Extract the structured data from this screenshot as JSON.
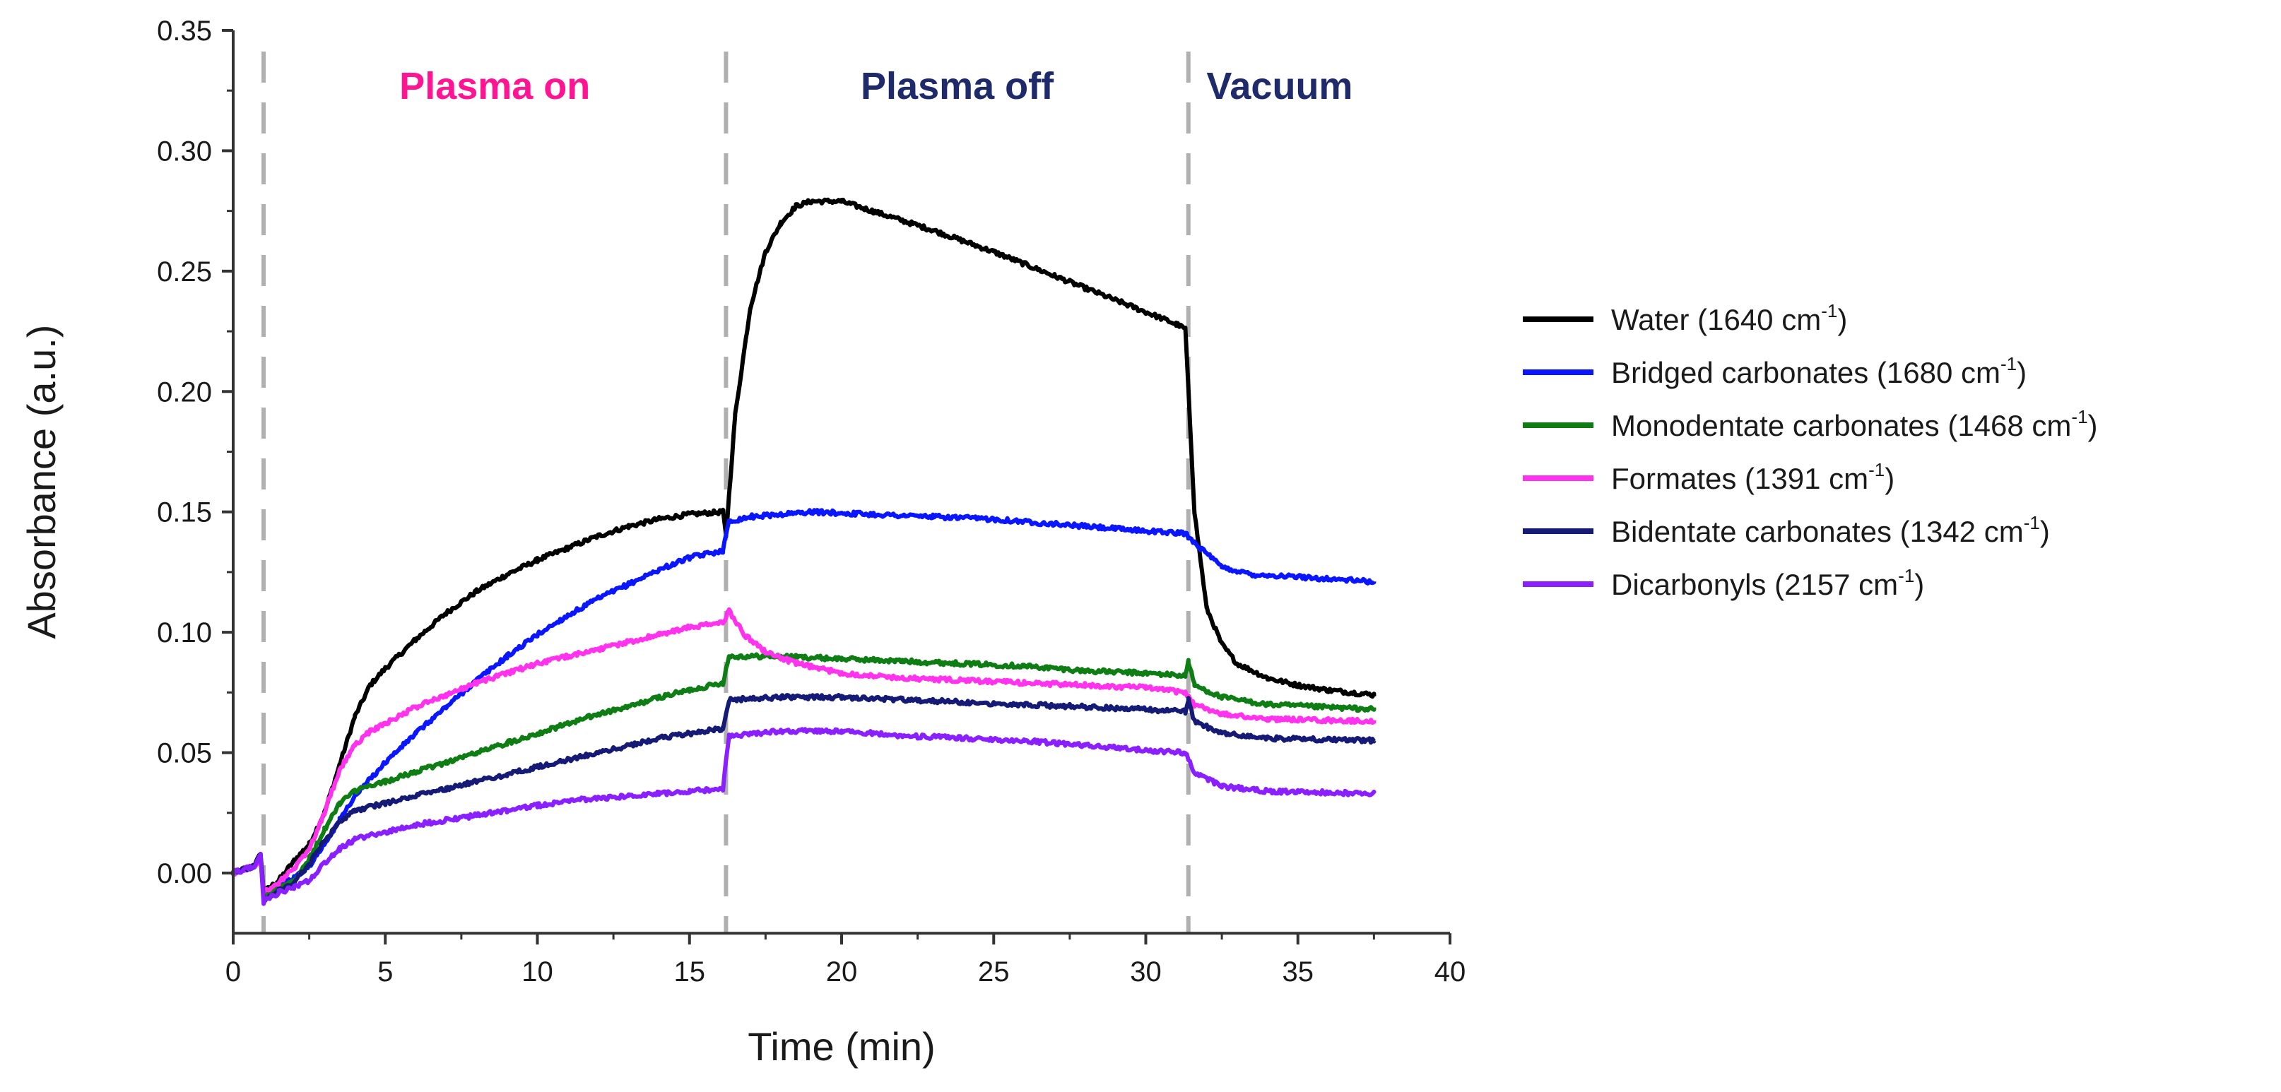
{
  "chart_data": {
    "type": "line",
    "xlabel": "Time (min)",
    "ylabel": "Absorbance (a.u.)",
    "xlim": [
      0,
      40
    ],
    "ylim": [
      -0.025,
      0.35
    ],
    "xticks": [
      "0",
      "5",
      "10",
      "15",
      "20",
      "25",
      "30",
      "35",
      "40"
    ],
    "xtick_values": [
      0,
      5,
      10,
      15,
      20,
      25,
      30,
      35,
      40
    ],
    "yticks": [
      "0.00",
      "0.05",
      "0.10",
      "0.15",
      "0.20",
      "0.25",
      "0.30",
      "0.35"
    ],
    "ytick_values": [
      0,
      0.05,
      0.1,
      0.15,
      0.2,
      0.25,
      0.3,
      0.35
    ],
    "phase_boundaries": [
      1.0,
      16.2,
      31.4
    ],
    "phases": [
      {
        "label": "Plasma on",
        "x_center": 8.6,
        "color": "#ff1493"
      },
      {
        "label": "Plasma off",
        "x_center": 23.8,
        "color": "#1f2a6b"
      },
      {
        "label": "Vacuum",
        "x_center": 34.4,
        "color": "#1f2a6b"
      }
    ],
    "legend_position": "right",
    "series": [
      {
        "name": "Water (1640 cm",
        "sup": "-1",
        "close": ")",
        "color": "#000000",
        "points": [
          [
            0,
            0
          ],
          [
            0.7,
            0.003
          ],
          [
            0.9,
            0.008
          ],
          [
            1.0,
            -0.008
          ],
          [
            1.5,
            -0.003
          ],
          [
            2.0,
            0.005
          ],
          [
            2.5,
            0.012
          ],
          [
            3.0,
            0.025
          ],
          [
            3.5,
            0.045
          ],
          [
            4.0,
            0.065
          ],
          [
            4.5,
            0.078
          ],
          [
            5.0,
            0.085
          ],
          [
            6.0,
            0.097
          ],
          [
            7.0,
            0.108
          ],
          [
            8.0,
            0.117
          ],
          [
            9.0,
            0.124
          ],
          [
            10.0,
            0.13
          ],
          [
            11.0,
            0.135
          ],
          [
            12.0,
            0.14
          ],
          [
            13.0,
            0.144
          ],
          [
            14.0,
            0.147
          ],
          [
            15.0,
            0.149
          ],
          [
            16.1,
            0.15
          ],
          [
            16.2,
            0.14
          ],
          [
            16.5,
            0.19
          ],
          [
            17.0,
            0.235
          ],
          [
            17.5,
            0.258
          ],
          [
            18.0,
            0.27
          ],
          [
            18.5,
            0.277
          ],
          [
            19.0,
            0.279
          ],
          [
            20.0,
            0.279
          ],
          [
            21.0,
            0.275
          ],
          [
            23.0,
            0.267
          ],
          [
            25.0,
            0.258
          ],
          [
            27.0,
            0.248
          ],
          [
            29.0,
            0.238
          ],
          [
            31.0,
            0.228
          ],
          [
            31.3,
            0.226
          ],
          [
            31.6,
            0.15
          ],
          [
            32.0,
            0.11
          ],
          [
            32.5,
            0.095
          ],
          [
            33.0,
            0.087
          ],
          [
            34.0,
            0.081
          ],
          [
            35.0,
            0.078
          ],
          [
            36.0,
            0.076
          ],
          [
            37.5,
            0.074
          ]
        ]
      },
      {
        "name": "Bridged carbonates (1680 cm",
        "sup": "-1",
        "close": ")",
        "color": "#0a16ff",
        "points": [
          [
            0,
            0
          ],
          [
            0.7,
            0.003
          ],
          [
            0.9,
            0.007
          ],
          [
            1.0,
            -0.009
          ],
          [
            1.5,
            -0.005
          ],
          [
            2.0,
            -0.002
          ],
          [
            2.5,
            0.003
          ],
          [
            3.0,
            0.012
          ],
          [
            3.5,
            0.022
          ],
          [
            4.0,
            0.032
          ],
          [
            5.0,
            0.046
          ],
          [
            6.0,
            0.058
          ],
          [
            7.0,
            0.069
          ],
          [
            8.0,
            0.08
          ],
          [
            9.0,
            0.09
          ],
          [
            10.0,
            0.099
          ],
          [
            11.0,
            0.107
          ],
          [
            12.0,
            0.114
          ],
          [
            13.0,
            0.12
          ],
          [
            14.0,
            0.126
          ],
          [
            15.0,
            0.131
          ],
          [
            16.1,
            0.134
          ],
          [
            16.3,
            0.146
          ],
          [
            17.0,
            0.148
          ],
          [
            19.0,
            0.15
          ],
          [
            21.0,
            0.149
          ],
          [
            23.0,
            0.148
          ],
          [
            25.0,
            0.147
          ],
          [
            27.0,
            0.145
          ],
          [
            29.0,
            0.143
          ],
          [
            31.3,
            0.141
          ],
          [
            31.8,
            0.135
          ],
          [
            32.5,
            0.127
          ],
          [
            33.5,
            0.124
          ],
          [
            35.0,
            0.123
          ],
          [
            37.5,
            0.121
          ]
        ]
      },
      {
        "name": "Monodentate carbonates (1468 cm",
        "sup": "-1",
        "close": ")",
        "color": "#0d7d14",
        "points": [
          [
            0,
            0
          ],
          [
            0.7,
            0.003
          ],
          [
            0.9,
            0.007
          ],
          [
            1.0,
            -0.01
          ],
          [
            1.5,
            -0.006
          ],
          [
            2.0,
            -0.003
          ],
          [
            2.5,
            0.006
          ],
          [
            3.0,
            0.018
          ],
          [
            3.5,
            0.029
          ],
          [
            4.0,
            0.034
          ],
          [
            5.0,
            0.038
          ],
          [
            6.0,
            0.042
          ],
          [
            7.0,
            0.046
          ],
          [
            8.0,
            0.05
          ],
          [
            9.0,
            0.054
          ],
          [
            10.0,
            0.058
          ],
          [
            11.0,
            0.062
          ],
          [
            12.0,
            0.066
          ],
          [
            13.0,
            0.069
          ],
          [
            14.0,
            0.073
          ],
          [
            15.0,
            0.076
          ],
          [
            16.1,
            0.079
          ],
          [
            16.3,
            0.09
          ],
          [
            18.0,
            0.09
          ],
          [
            20.0,
            0.089
          ],
          [
            22.0,
            0.088
          ],
          [
            24.0,
            0.087
          ],
          [
            26.0,
            0.086
          ],
          [
            28.0,
            0.084
          ],
          [
            30.0,
            0.083
          ],
          [
            31.3,
            0.082
          ],
          [
            31.4,
            0.088
          ],
          [
            31.6,
            0.078
          ],
          [
            32.5,
            0.073
          ],
          [
            34.0,
            0.07
          ],
          [
            37.5,
            0.068
          ]
        ]
      },
      {
        "name": "Formates (1391 cm",
        "sup": "-1",
        "close": ")",
        "color": "#ff33ee",
        "points": [
          [
            0,
            0
          ],
          [
            0.7,
            0.003
          ],
          [
            0.9,
            0.006
          ],
          [
            1.0,
            -0.008
          ],
          [
            1.5,
            -0.004
          ],
          [
            2.0,
            0.002
          ],
          [
            2.5,
            0.01
          ],
          [
            3.0,
            0.025
          ],
          [
            3.5,
            0.043
          ],
          [
            4.0,
            0.053
          ],
          [
            4.5,
            0.059
          ],
          [
            5.0,
            0.062
          ],
          [
            6.0,
            0.069
          ],
          [
            7.0,
            0.074
          ],
          [
            8.0,
            0.079
          ],
          [
            9.0,
            0.083
          ],
          [
            10.0,
            0.087
          ],
          [
            11.0,
            0.09
          ],
          [
            12.0,
            0.093
          ],
          [
            13.0,
            0.096
          ],
          [
            14.0,
            0.099
          ],
          [
            15.0,
            0.102
          ],
          [
            16.1,
            0.104
          ],
          [
            16.3,
            0.109
          ],
          [
            16.8,
            0.099
          ],
          [
            17.5,
            0.092
          ],
          [
            18.5,
            0.087
          ],
          [
            20.0,
            0.083
          ],
          [
            22.0,
            0.081
          ],
          [
            24.0,
            0.08
          ],
          [
            26.0,
            0.079
          ],
          [
            28.0,
            0.078
          ],
          [
            30.0,
            0.077
          ],
          [
            31.3,
            0.075
          ],
          [
            31.6,
            0.07
          ],
          [
            32.5,
            0.066
          ],
          [
            34.0,
            0.064
          ],
          [
            37.5,
            0.063
          ]
        ]
      },
      {
        "name": "Bidentate carbonates (1342 cm",
        "sup": "-1",
        "close": ")",
        "color": "#141a75",
        "points": [
          [
            0,
            0
          ],
          [
            0.7,
            0.003
          ],
          [
            0.9,
            0.007
          ],
          [
            1.0,
            -0.011
          ],
          [
            1.5,
            -0.007
          ],
          [
            2.0,
            -0.004
          ],
          [
            2.5,
            0.004
          ],
          [
            3.0,
            0.013
          ],
          [
            3.5,
            0.021
          ],
          [
            4.0,
            0.026
          ],
          [
            5.0,
            0.029
          ],
          [
            6.0,
            0.032
          ],
          [
            7.0,
            0.035
          ],
          [
            8.0,
            0.038
          ],
          [
            9.0,
            0.041
          ],
          [
            10.0,
            0.044
          ],
          [
            11.0,
            0.047
          ],
          [
            12.0,
            0.05
          ],
          [
            13.0,
            0.053
          ],
          [
            14.0,
            0.056
          ],
          [
            15.0,
            0.058
          ],
          [
            16.1,
            0.06
          ],
          [
            16.3,
            0.072
          ],
          [
            18.0,
            0.073
          ],
          [
            20.0,
            0.073
          ],
          [
            22.0,
            0.072
          ],
          [
            24.0,
            0.071
          ],
          [
            26.0,
            0.07
          ],
          [
            28.0,
            0.069
          ],
          [
            30.0,
            0.068
          ],
          [
            31.3,
            0.067
          ],
          [
            31.4,
            0.072
          ],
          [
            31.6,
            0.063
          ],
          [
            32.5,
            0.058
          ],
          [
            34.0,
            0.056
          ],
          [
            37.5,
            0.055
          ]
        ]
      },
      {
        "name": "Dicarbonyls (2157 cm",
        "sup": "-1",
        "close": ")",
        "color": "#8a1fff",
        "points": [
          [
            0,
            0
          ],
          [
            0.7,
            0.003
          ],
          [
            0.9,
            0.008
          ],
          [
            1.0,
            -0.012
          ],
          [
            1.5,
            -0.008
          ],
          [
            2.0,
            -0.006
          ],
          [
            2.5,
            -0.003
          ],
          [
            3.0,
            0.004
          ],
          [
            3.5,
            0.01
          ],
          [
            4.0,
            0.014
          ],
          [
            5.0,
            0.017
          ],
          [
            6.0,
            0.02
          ],
          [
            7.0,
            0.022
          ],
          [
            8.0,
            0.024
          ],
          [
            9.0,
            0.026
          ],
          [
            10.0,
            0.028
          ],
          [
            11.0,
            0.03
          ],
          [
            12.0,
            0.031
          ],
          [
            13.0,
            0.032
          ],
          [
            14.0,
            0.033
          ],
          [
            15.0,
            0.034
          ],
          [
            16.1,
            0.035
          ],
          [
            16.3,
            0.057
          ],
          [
            18.0,
            0.059
          ],
          [
            20.0,
            0.059
          ],
          [
            22.0,
            0.057
          ],
          [
            24.0,
            0.056
          ],
          [
            26.0,
            0.055
          ],
          [
            28.0,
            0.053
          ],
          [
            30.0,
            0.051
          ],
          [
            31.3,
            0.05
          ],
          [
            31.6,
            0.042
          ],
          [
            32.5,
            0.036
          ],
          [
            34.0,
            0.034
          ],
          [
            37.5,
            0.033
          ]
        ]
      }
    ]
  }
}
